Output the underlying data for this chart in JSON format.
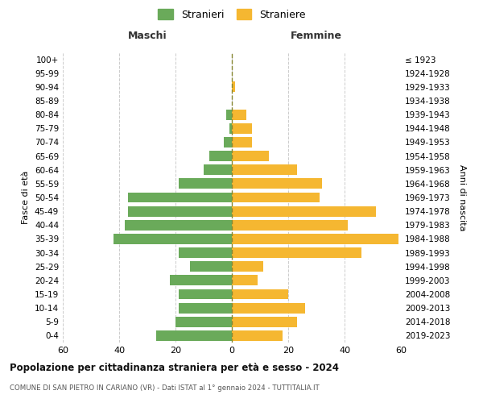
{
  "age_groups": [
    "0-4",
    "5-9",
    "10-14",
    "15-19",
    "20-24",
    "25-29",
    "30-34",
    "35-39",
    "40-44",
    "45-49",
    "50-54",
    "55-59",
    "60-64",
    "65-69",
    "70-74",
    "75-79",
    "80-84",
    "85-89",
    "90-94",
    "95-99",
    "100+"
  ],
  "birth_years": [
    "2019-2023",
    "2014-2018",
    "2009-2013",
    "2004-2008",
    "1999-2003",
    "1994-1998",
    "1989-1993",
    "1984-1988",
    "1979-1983",
    "1974-1978",
    "1969-1973",
    "1964-1968",
    "1959-1963",
    "1954-1958",
    "1949-1953",
    "1944-1948",
    "1939-1943",
    "1934-1938",
    "1929-1933",
    "1924-1928",
    "≤ 1923"
  ],
  "stranieri": [
    27,
    20,
    19,
    19,
    22,
    15,
    19,
    42,
    38,
    37,
    37,
    19,
    10,
    8,
    3,
    1,
    2,
    0,
    0,
    0,
    0
  ],
  "straniere": [
    18,
    23,
    26,
    20,
    9,
    11,
    46,
    59,
    41,
    51,
    31,
    32,
    23,
    13,
    7,
    7,
    5,
    0,
    1,
    0,
    0
  ],
  "male_color": "#6aaa5a",
  "female_color": "#f5b731",
  "xlim": 60,
  "title": "Popolazione per cittadinanza straniera per età e sesso - 2024",
  "subtitle": "COMUNE DI SAN PIETRO IN CARIANO (VR) - Dati ISTAT al 1° gennaio 2024 - TUTTITALIA.IT",
  "xlabel_left": "Maschi",
  "xlabel_right": "Femmine",
  "ylabel_left": "Fasce di età",
  "ylabel_right": "Anni di nascita",
  "legend_male": "Stranieri",
  "legend_female": "Straniere",
  "background_color": "#ffffff",
  "grid_color": "#cccccc"
}
